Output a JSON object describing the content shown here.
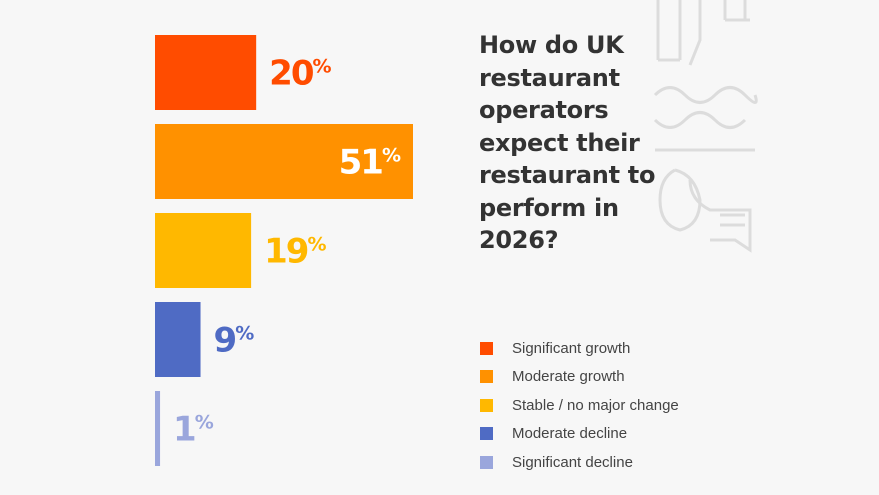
{
  "chart_data": {
    "type": "bar",
    "orientation": "horizontal",
    "title": "How do UK restaurant operators expect their restaurant to perform in 2026?",
    "categories": [
      "Significant growth",
      "Moderate growth",
      "Stable / no major change",
      "Moderate decline",
      "Significant decline"
    ],
    "values": [
      20,
      51,
      19,
      9,
      1
    ],
    "data_labels": [
      "20%",
      "51%",
      "19%",
      "9%",
      "1%"
    ],
    "colors": [
      "#ff4c00",
      "#ff9100",
      "#ffb800",
      "#4f6bc4",
      "#9aa6dc"
    ],
    "xlim": [
      0,
      51
    ],
    "grid": false,
    "legend_position": "right"
  },
  "decoration": {
    "icon": "restaurant-line-art-icon",
    "color": "#dddddd"
  }
}
